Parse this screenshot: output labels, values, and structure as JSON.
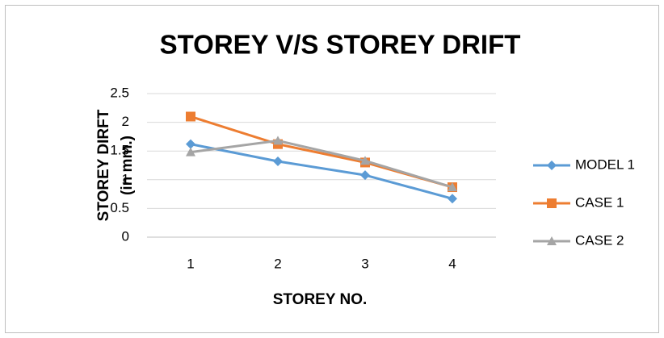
{
  "chart_data": {
    "type": "line",
    "title": "STOREY V/S STOREY DRIFT",
    "x_label": "STOREY NO.",
    "y_label": [
      "STOREY DIRFT",
      "(in mm.)"
    ],
    "categories": [
      "1",
      "2",
      "3",
      "4"
    ],
    "series": [
      {
        "name": "MODEL 1",
        "color": "#5b9bd5",
        "marker": "diamond",
        "values": [
          1.62,
          1.32,
          1.08,
          0.67
        ]
      },
      {
        "name": "CASE 1",
        "color": "#ed7d31",
        "marker": "square",
        "values": [
          2.1,
          1.62,
          1.3,
          0.87
        ]
      },
      {
        "name": "CASE 2",
        "color": "#a5a5a5",
        "marker": "triangle",
        "values": [
          1.48,
          1.68,
          1.33,
          0.87
        ]
      }
    ],
    "ylim": [
      0,
      2.5
    ],
    "yticks": [
      0,
      0.5,
      1,
      1.5,
      2,
      2.5
    ],
    "grid": true,
    "legend": "right"
  }
}
